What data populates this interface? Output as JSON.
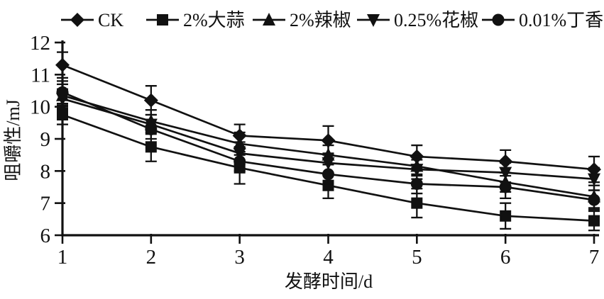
{
  "figure": {
    "background": "#ffffff",
    "ink_color": "#111111"
  },
  "chart_data": {
    "type": "line",
    "title": "",
    "xlabel": "发酵时间/d",
    "ylabel": "咀嚼性/mJ",
    "x": [
      1,
      2,
      3,
      4,
      5,
      6,
      7
    ],
    "x_ticks": [
      1,
      2,
      3,
      4,
      5,
      6,
      7
    ],
    "y_ticks": [
      6,
      7,
      8,
      9,
      10,
      11,
      12
    ],
    "xlim": [
      1,
      7
    ],
    "ylim": [
      6,
      12
    ],
    "grid": false,
    "legend_position": "top",
    "error_bars": true,
    "series": [
      {
        "name": "CK",
        "marker": "diamond",
        "values": [
          11.3,
          10.2,
          9.1,
          8.95,
          8.45,
          8.3,
          8.05
        ],
        "errors": [
          0.4,
          0.45,
          0.35,
          0.45,
          0.35,
          0.35,
          0.4
        ]
      },
      {
        "name": "2%大蒜",
        "marker": "square",
        "values": [
          9.75,
          8.75,
          8.1,
          7.55,
          7.0,
          6.6,
          6.45
        ],
        "errors": [
          0.3,
          0.45,
          0.5,
          0.4,
          0.45,
          0.4,
          0.3
        ]
      },
      {
        "name": "2%辣椒",
        "marker": "triangle-up",
        "values": [
          10.35,
          9.55,
          8.85,
          8.5,
          8.15,
          7.65,
          7.2
        ],
        "errors": [
          0.35,
          0.35,
          0.35,
          0.3,
          0.3,
          0.3,
          0.35
        ]
      },
      {
        "name": "0.25%花椒",
        "marker": "triangle-down",
        "values": [
          10.25,
          9.45,
          8.55,
          8.25,
          8.05,
          7.95,
          7.75
        ],
        "errors": [
          0.3,
          0.3,
          0.35,
          0.3,
          0.3,
          0.3,
          0.35
        ]
      },
      {
        "name": "0.01%丁香",
        "marker": "circle",
        "values": [
          10.45,
          9.3,
          8.3,
          7.9,
          7.6,
          7.5,
          7.1
        ],
        "errors": [
          0.35,
          0.3,
          0.3,
          0.3,
          0.3,
          0.35,
          0.3
        ]
      }
    ]
  }
}
